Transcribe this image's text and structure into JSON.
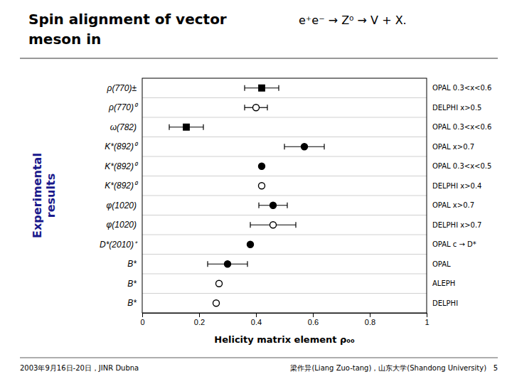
{
  "chart_data": {
    "type": "dot",
    "orientation": "horizontal",
    "title": [
      "Spin alignment of vector",
      "meson in"
    ],
    "subtitle": "e⁺e⁻ → Z⁰ → V + X.",
    "xlabel": "Helicity matrix element ρ₀₀",
    "side_label": "Experimental\nresults",
    "footer": [
      "2003年9月16日-20日，JINR Dubna",
      "梁作异(Liang Zuo-tang)，山东大学(Shandong University)   5"
    ],
    "categories": [
      "ρ(770)±",
      "ρ(770)⁰",
      "ω(782)",
      "K*(892)⁰",
      "K*(892)⁰",
      "K*(892)⁰",
      "φ(1020)",
      "φ(1020)",
      "D*(2010)⁺",
      "B*",
      "B*",
      "B*"
    ],
    "values": [
      0.42,
      0.4,
      0.155,
      0.57,
      0.42,
      0.42,
      0.46,
      0.46,
      0.38,
      0.3,
      0.27,
      0.26
    ],
    "errors": [
      0.06,
      0.04,
      0.06,
      0.07,
      0.0,
      0.0,
      0.05,
      0.08,
      0.0,
      0.07,
      0.0,
      0.0
    ],
    "markers": [
      "filled-square",
      "open-circle",
      "filled-square",
      "filled-circle",
      "filled-circle",
      "open-circle",
      "filled-circle",
      "open-circle",
      "filled-circle",
      "filled-circle",
      "open-circle",
      "open-circle"
    ],
    "annotations": [
      "OPAL 0.3<x<0.6",
      "DELPHI x>0.5",
      "OPAL 0.3<x<0.6",
      "OPAL x>0.7",
      "OPAL 0.3<x<0.5",
      "DELPHI x>0.4",
      "OPAL x>0.7",
      "DELPHI x>0.7",
      "OPAL c → D*",
      "OPAL",
      "ALEPH",
      "DELPHI"
    ],
    "xlim": [
      0,
      1
    ],
    "xticks": [
      0,
      0.2,
      0.4,
      0.6,
      0.8,
      1
    ]
  }
}
